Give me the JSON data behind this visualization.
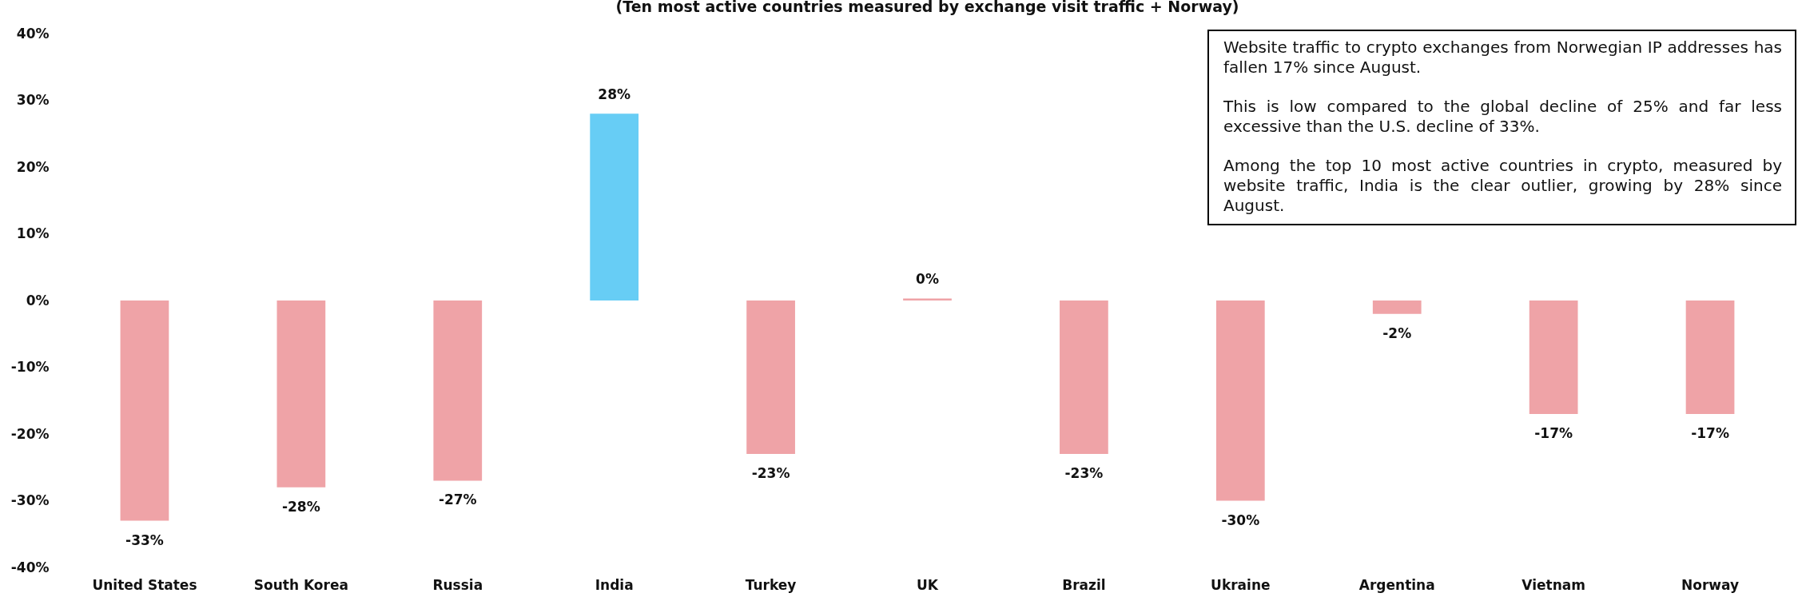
{
  "chart_data": {
    "type": "bar",
    "title": "(Ten most active countries measured by exchange visit traffic + Norway)",
    "categories": [
      "United States",
      "South Korea",
      "Russia",
      "India",
      "Turkey",
      "UK",
      "Brazil",
      "Ukraine",
      "Argentina",
      "Vietnam",
      "Norway"
    ],
    "values": [
      -33,
      -28,
      -27,
      28,
      -23,
      0.3,
      -23,
      -30,
      -2,
      -17,
      -17
    ],
    "colors": [
      "#efa3a7",
      "#efa3a7",
      "#efa3a7",
      "#67cdf5",
      "#efa3a7",
      "#efa3a7",
      "#efa3a7",
      "#efa3a7",
      "#efa3a7",
      "#efa3a7",
      "#efa3a7"
    ],
    "value_labels": [
      "-33%",
      "-28%",
      "-27%",
      "28%",
      "-23%",
      "0%",
      "-23%",
      "-30%",
      "-2%",
      "-17%",
      "-17%"
    ],
    "ylim": [
      -40,
      40
    ],
    "yticks": [
      {
        "value": 40,
        "label": "40%"
      },
      {
        "value": 30,
        "label": "30%"
      },
      {
        "value": 20,
        "label": "20%"
      },
      {
        "value": 10,
        "label": "10%"
      },
      {
        "value": 0,
        "label": "0%"
      },
      {
        "value": -10,
        "label": "-10%"
      },
      {
        "value": -20,
        "label": "-20%"
      },
      {
        "value": -30,
        "label": "-30%"
      },
      {
        "value": -40,
        "label": "-40%"
      }
    ],
    "annotations": [
      "Website traffic to crypto exchanges from Norwegian IP addresses has fallen 17% since August.",
      "This is low compared to the global decline of 25% and far less excessive than the U.S. decline of 33%.",
      "Among the top 10 most active countries in crypto, measured by website traffic, India is the clear outlier, growing by 28% since August."
    ]
  }
}
